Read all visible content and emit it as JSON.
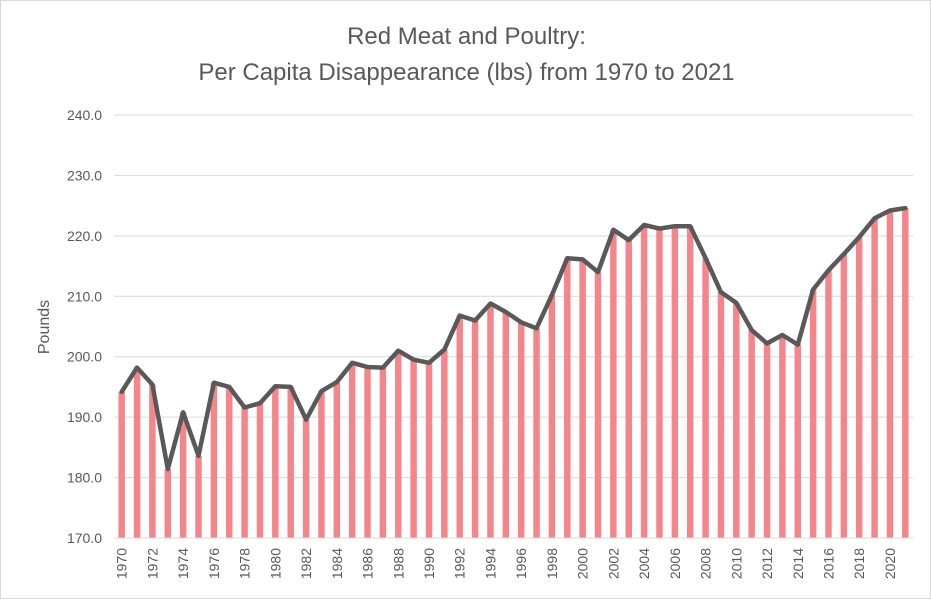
{
  "chart_data": {
    "type": "bar",
    "title_line_1": "Red Meat and Poultry:",
    "title_line_2": "Per Capita Disappearance  (lbs) from 1970 to 2021",
    "xlabel": "",
    "ylabel": "Pounds",
    "ylim": [
      170,
      240
    ],
    "yticks": [
      "170.0",
      "180.0",
      "190.0",
      "200.0",
      "210.0",
      "220.0",
      "230.0",
      "240.0"
    ],
    "grid": true,
    "bar_color": "#f4858a",
    "line_color": "#595959",
    "categories": [
      "1970",
      "1971",
      "1972",
      "1973",
      "1974",
      "1975",
      "1976",
      "1977",
      "1978",
      "1979",
      "1980",
      "1981",
      "1982",
      "1983",
      "1984",
      "1985",
      "1986",
      "1987",
      "1988",
      "1989",
      "1990",
      "1991",
      "1992",
      "1993",
      "1994",
      "1995",
      "1996",
      "1997",
      "1998",
      "1999",
      "2000",
      "2001",
      "2002",
      "2003",
      "2004",
      "2005",
      "2006",
      "2007",
      "2008",
      "2009",
      "2010",
      "2011",
      "2012",
      "2013",
      "2014",
      "2015",
      "2016",
      "2017",
      "2018",
      "2019",
      "2020",
      "2021"
    ],
    "x_tick_labels": [
      "1970",
      "1972",
      "1974",
      "1976",
      "1978",
      "1980",
      "1982",
      "1984",
      "1986",
      "1988",
      "1990",
      "1992",
      "1994",
      "1996",
      "1998",
      "2000",
      "2002",
      "2004",
      "2006",
      "2008",
      "2010",
      "2012",
      "2014",
      "2016",
      "2018",
      "2020"
    ],
    "values": [
      194.2,
      198.2,
      195.4,
      181.4,
      190.8,
      183.6,
      195.7,
      195.0,
      191.6,
      192.3,
      195.1,
      195.0,
      189.6,
      194.3,
      195.8,
      199.0,
      198.3,
      198.2,
      201.0,
      199.5,
      199.0,
      201.2,
      206.8,
      206.0,
      208.8,
      207.4,
      205.7,
      204.7,
      210.2,
      216.3,
      216.1,
      214.0,
      221.0,
      219.3,
      221.8,
      221.2,
      221.6,
      221.6,
      216.3,
      210.7,
      208.9,
      204.4,
      202.2,
      203.6,
      202.0,
      211.1,
      214.3,
      217.0,
      219.8,
      222.9,
      224.2,
      224.6
    ]
  }
}
